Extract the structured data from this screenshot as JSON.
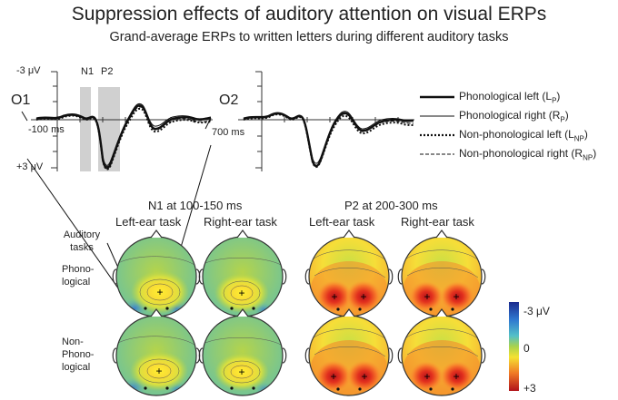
{
  "title": "Suppression effects of auditory attention on visual ERPs",
  "subtitle": "Grand-average ERPs to written letters during different auditory tasks",
  "erp": {
    "y_top_label": "-3 μV",
    "y_bottom_label": "+3 μV",
    "time_start_label": "-100 ms",
    "time_end_label": "700 ms",
    "window_n1_label": "N1",
    "window_p2_label": "P2",
    "left_channel": "O1",
    "right_channel": "O2"
  },
  "legend": [
    {
      "label": "Phonological left (L",
      "sub": "P",
      "close": ")",
      "style": "thick-solid"
    },
    {
      "label": "Phonological right (R",
      "sub": "P",
      "close": ")",
      "style": "thin-solid"
    },
    {
      "label": "Non-phonological left (L",
      "sub": "NP",
      "close": ")",
      "style": "thick-dotted"
    },
    {
      "label": "Non-phonological right (R",
      "sub": "NP",
      "close": ")",
      "style": "thin-dashed"
    }
  ],
  "topomaps": {
    "n1_title": "N1 at 100-150 ms",
    "p2_title": "P2 at 200-300 ms",
    "left_task": "Left-ear task",
    "right_task": "Right-ear task",
    "row_header": "Auditory tasks",
    "row1": "Phono-logical",
    "row2": "Non-Phono-logical"
  },
  "colorbar": {
    "top": "-3 μV",
    "mid": "0",
    "bottom": "+3"
  }
}
